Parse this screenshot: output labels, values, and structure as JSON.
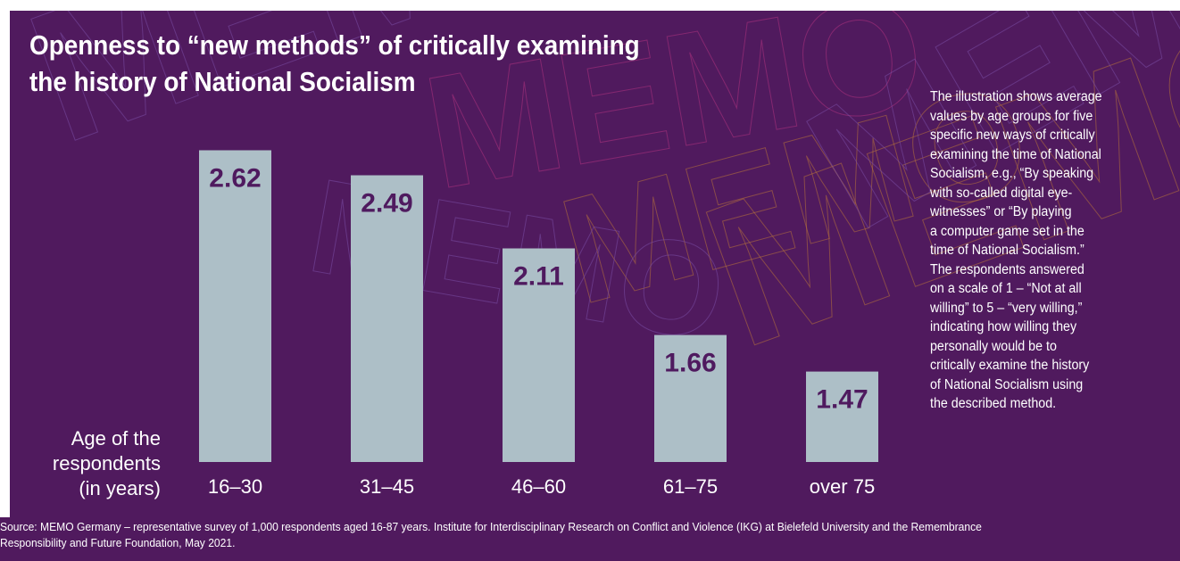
{
  "colors": {
    "background": "#501a5e",
    "bar": "#adbfc7",
    "value_text": "#4f1a5f",
    "text": "#ffffff",
    "watermark_a": "#7a4ea6",
    "watermark_b": "#b0337f",
    "watermark_c": "#b8743a"
  },
  "title_lines": [
    "Openness to “new methods” of critically examining",
    "the history of National Socialism"
  ],
  "axis_title_lines": [
    "Age of the",
    "respondents",
    "(in years)"
  ],
  "watermark_text": "MEMO",
  "description_lines": [
    "The illustration shows average",
    "values by age groups for five",
    "specific new ways of critically",
    "examining the time of National",
    "Socialism, e.g., “By speaking",
    "with so-called digital eye-",
    "witnesses” or “By playing",
    "a computer game set in the",
    "time of National Socialism.”",
    "The respondents answered",
    "on a scale of 1 – “Not at all",
    "willing” to 5 – “very willing,”",
    "indicating how willing they",
    "personally would be to",
    "critically examine the history",
    "of National Socialism using",
    "the described method."
  ],
  "source_lines": [
    "Source: MEMO Germany – representative survey of 1,000 respondents aged 16-87 years. Institute for Interdisciplinary Research on Conflict and Violence (IKG) at Bielefeld University and the Remembrance",
    "Responsibility and Future Foundation, May 2021."
  ],
  "chart_data": {
    "type": "bar",
    "categories": [
      "16–30",
      "31–45",
      "46–60",
      "61–75",
      "over 75"
    ],
    "values": [
      2.62,
      2.49,
      2.11,
      1.66,
      1.47
    ],
    "value_labels": [
      "2.62",
      "2.49",
      "2.11",
      "1.66",
      "1.47"
    ],
    "title": "Openness to “new methods” of critically examining the history of National Socialism",
    "xlabel": "Age of the respondents (in years)",
    "ylabel": "",
    "ylim": [
      1,
      2.65
    ],
    "grid": false,
    "legend": "none"
  }
}
